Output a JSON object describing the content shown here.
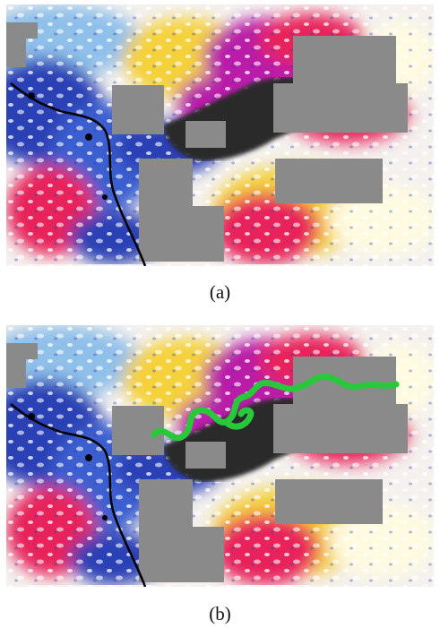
{
  "figure": {
    "panels": [
      {
        "id": "a",
        "caption": "(a)",
        "has_overlay_path": false
      },
      {
        "id": "b",
        "caption": "(b)",
        "has_overlay_path": true
      }
    ],
    "colors": {
      "background": "#ffffff",
      "masked_region": "#8a8a8a",
      "dark_anomaly": "#2a2a2a",
      "high_magenta": "#b81ea8",
      "high_red": "#e8245a",
      "mid_yellow": "#f5d13a",
      "low_blue": "#2a3fb5",
      "light_blue": "#8fc0ea",
      "boundary_line": "#000000",
      "overlay_path": "#28c83a"
    }
  }
}
